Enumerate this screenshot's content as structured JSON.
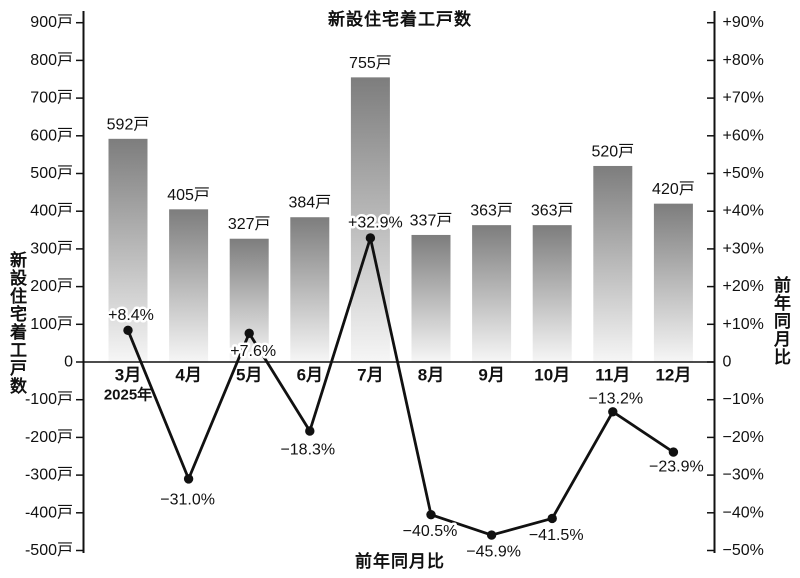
{
  "chart_data": {
    "type": "combo bar+line",
    "title": "新設住宅着工戸数",
    "categories": [
      "3月",
      "4月",
      "5月",
      "6月",
      "7月",
      "8月",
      "9月",
      "10月",
      "11月",
      "12月"
    ],
    "year_annotation": "2025年",
    "line_series_caption": "前年同月比",
    "grid": false,
    "legend_position": "none",
    "series": [
      {
        "name": "新設住宅着工戸数",
        "type": "bar",
        "axis": "left",
        "unit": "戸",
        "values": [
          592,
          405,
          327,
          384,
          755,
          337,
          363,
          363,
          520,
          420
        ],
        "labels": [
          "592戸",
          "405戸",
          "327戸",
          "384戸",
          "755戸",
          "337戸",
          "363戸",
          "363戸",
          "520戸",
          "420戸"
        ]
      },
      {
        "name": "前年同月比",
        "type": "line",
        "axis": "right",
        "unit": "%",
        "values": [
          8.4,
          -31.0,
          7.6,
          -18.3,
          32.9,
          -40.5,
          -45.9,
          -41.5,
          -13.2,
          -23.9
        ],
        "labels": [
          "+8.4%",
          "−31.0%",
          "+7.6%",
          "−18.3%",
          "+32.9%",
          "−40.5%",
          "−45.9%",
          "−41.5%",
          "−13.2%",
          "−23.9%"
        ]
      }
    ],
    "left_axis": {
      "title": "新設住宅着工戸数",
      "range": [
        -500,
        900
      ],
      "tick_step": 100,
      "ticks": [
        {
          "v": 900,
          "label": "900戸"
        },
        {
          "v": 800,
          "label": "800戸"
        },
        {
          "v": 700,
          "label": "700戸"
        },
        {
          "v": 600,
          "label": "600戸"
        },
        {
          "v": 500,
          "label": "500戸"
        },
        {
          "v": 400,
          "label": "400戸"
        },
        {
          "v": 300,
          "label": "300戸"
        },
        {
          "v": 200,
          "label": "200戸"
        },
        {
          "v": 100,
          "label": "100戸"
        },
        {
          "v": 0,
          "label": "0"
        },
        {
          "v": -100,
          "label": "-100戸"
        },
        {
          "v": -200,
          "label": "-200戸"
        },
        {
          "v": -300,
          "label": "-300戸"
        },
        {
          "v": -400,
          "label": "-400戸"
        },
        {
          "v": -500,
          "label": "-500戸"
        }
      ]
    },
    "right_axis": {
      "title": "前年同月比",
      "range": [
        -50,
        90
      ],
      "tick_step": 10,
      "ticks": [
        {
          "v": 90,
          "label": "+90%"
        },
        {
          "v": 80,
          "label": "+80%"
        },
        {
          "v": 70,
          "label": "+70%"
        },
        {
          "v": 60,
          "label": "+60%"
        },
        {
          "v": 50,
          "label": "+50%"
        },
        {
          "v": 40,
          "label": "+40%"
        },
        {
          "v": 30,
          "label": "+30%"
        },
        {
          "v": 20,
          "label": "+20%"
        },
        {
          "v": 10,
          "label": "+10%"
        },
        {
          "v": 0,
          "label": "0"
        },
        {
          "v": -10,
          "label": "−10%"
        },
        {
          "v": -20,
          "label": "−20%"
        },
        {
          "v": -30,
          "label": "−30%"
        },
        {
          "v": -40,
          "label": "−40%"
        },
        {
          "v": -50,
          "label": "−50%"
        }
      ]
    },
    "colors": {
      "bar_gradient_top": "#7d7d7d",
      "bar_gradient_bottom": "#f6f6f6",
      "line": "#111111",
      "text": "#111111",
      "background": "#ffffff"
    }
  }
}
